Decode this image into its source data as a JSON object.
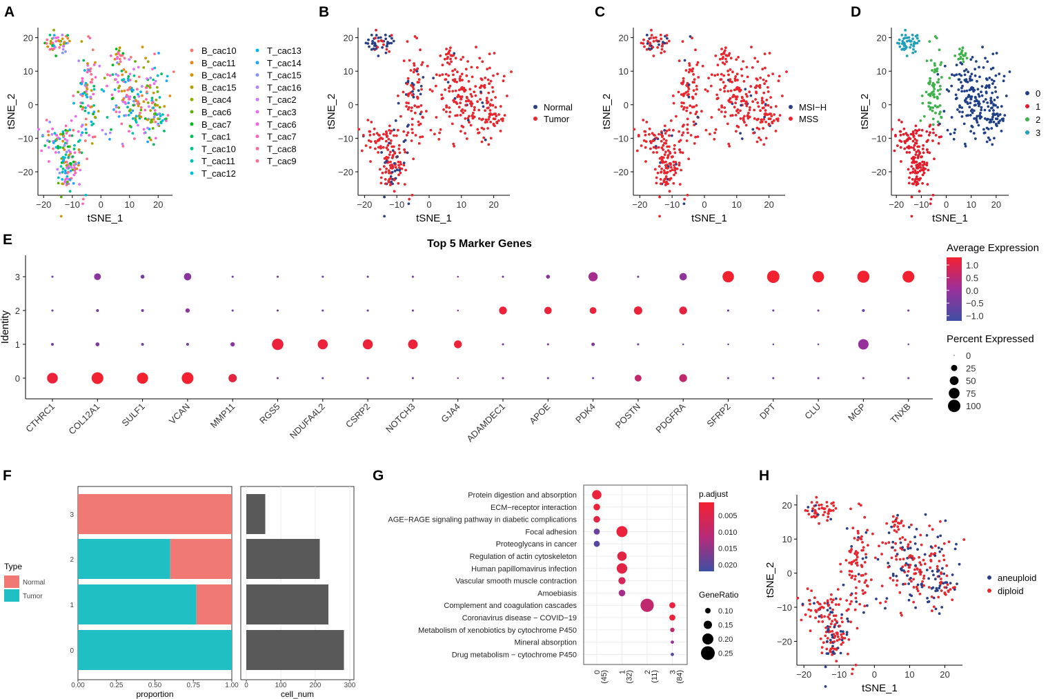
{
  "colors": {
    "normal_dot": "#2b3f86",
    "tumor_dot": "#e8262e",
    "cluster": [
      "#1f3f86",
      "#e21c2a",
      "#3db14a",
      "#1fa0b8"
    ],
    "grad_low": "#3f4fa3",
    "grad_mid": "#9b2f9b",
    "grad_high": "#f22130",
    "bar_normal": "#f07a73",
    "bar_tumor": "#1fbfc3",
    "bar_grey": "#595959"
  },
  "panels": {
    "A": {
      "label": "A",
      "xlabel": "tSNE_1",
      "ylabel": "tSNE_2",
      "legend": [
        "B_cac10",
        "B_cac11",
        "B_cac14",
        "B_cac15",
        "B_cac4",
        "B_cac6",
        "B_cac7",
        "T_cac1",
        "T_cac10",
        "T_cac11",
        "T_cac12",
        "T_cac13",
        "T_cac14",
        "T_cac15",
        "T_cac16",
        "T_cac2",
        "T_cac3",
        "T_cac6",
        "T_cac7",
        "T_cac8",
        "T_cac9"
      ],
      "legend_colors": [
        "#f4766e",
        "#e7861a",
        "#cf9400",
        "#b39f00",
        "#8fac00",
        "#5bb300",
        "#00b81f",
        "#00bc59",
        "#00c08b",
        "#00c0b3",
        "#00bcd8",
        "#00b4ef",
        "#1ea4ff",
        "#8494ff",
        "#b385ff",
        "#d376ff",
        "#e76bf3",
        "#f763e0",
        "#ff62bc",
        "#ff6a98",
        "#ff6c91"
      ]
    },
    "B": {
      "label": "B",
      "xlabel": "tSNE_1",
      "ylabel": "tSNE_2",
      "legend": [
        "Normal",
        "Tumor"
      ]
    },
    "C": {
      "label": "C",
      "xlabel": "tSNE_1",
      "ylabel": "tSNE_2",
      "legend": [
        "MSI−H",
        "MSS"
      ]
    },
    "D": {
      "label": "D",
      "xlabel": "tSNE_1",
      "ylabel": "tSNE_2",
      "legend": [
        "0",
        "1",
        "2",
        "3"
      ]
    },
    "E": {
      "label": "E"
    },
    "F": {
      "label": "F"
    },
    "G": {
      "label": "G"
    },
    "H": {
      "label": "H",
      "xlabel": "tSNE_1",
      "ylabel": "tSNE_2",
      "legend": [
        "aneuploid",
        "diploid"
      ]
    }
  },
  "chart_data": [
    {
      "id": "A",
      "type": "scatter",
      "title": "",
      "xlabel": "tSNE_1",
      "ylabel": "tSNE_2",
      "xlim": [
        -22,
        25
      ],
      "ylim": [
        -27,
        23
      ],
      "xticks": [
        -20,
        -10,
        0,
        10,
        20
      ],
      "yticks": [
        -20,
        -10,
        0,
        10,
        20
      ],
      "coloring": "sample",
      "series_names": [
        "B_cac10",
        "B_cac11",
        "B_cac14",
        "B_cac15",
        "B_cac4",
        "B_cac6",
        "B_cac7",
        "T_cac1",
        "T_cac10",
        "T_cac11",
        "T_cac12",
        "T_cac13",
        "T_cac14",
        "T_cac15",
        "T_cac16",
        "T_cac2",
        "T_cac3",
        "T_cac6",
        "T_cac7",
        "T_cac8",
        "T_cac9"
      ]
    },
    {
      "id": "B",
      "type": "scatter",
      "xlabel": "tSNE_1",
      "ylabel": "tSNE_2",
      "xlim": [
        -22,
        25
      ],
      "ylim": [
        -27,
        23
      ],
      "xticks": [
        -20,
        -10,
        0,
        10,
        20
      ],
      "yticks": [
        -20,
        -10,
        0,
        10,
        20
      ],
      "coloring": "type",
      "series_names": [
        "Normal",
        "Tumor"
      ]
    },
    {
      "id": "C",
      "type": "scatter",
      "xlabel": "tSNE_1",
      "ylabel": "tSNE_2",
      "xlim": [
        -22,
        25
      ],
      "ylim": [
        -27,
        23
      ],
      "xticks": [
        -20,
        -10,
        0,
        10,
        20
      ],
      "yticks": [
        -20,
        -10,
        0,
        10,
        20
      ],
      "coloring": "msi",
      "series_names": [
        "MSI−H",
        "MSS"
      ]
    },
    {
      "id": "D",
      "type": "scatter",
      "xlabel": "tSNE_1",
      "ylabel": "tSNE_2",
      "xlim": [
        -22,
        25
      ],
      "ylim": [
        -27,
        23
      ],
      "xticks": [
        -20,
        -10,
        0,
        10,
        20
      ],
      "yticks": [
        -20,
        -10,
        0,
        10,
        20
      ],
      "coloring": "cluster",
      "series_names": [
        "0",
        "1",
        "2",
        "3"
      ]
    },
    {
      "id": "E",
      "type": "dot",
      "title": "Top 5 Marker Genes",
      "ylabel": "Identity",
      "identities": [
        "0",
        "1",
        "2",
        "3"
      ],
      "genes": [
        "CTHRC1",
        "COL12A1",
        "SULF1",
        "VCAN",
        "MMP11",
        "RGS5",
        "NDUFA4L2",
        "CSRP2",
        "NOTCH3",
        "GJA4",
        "ADAMDEC1",
        "APOE",
        "PDK4",
        "POSTN",
        "PDGFRA",
        "SFRP2",
        "DPT",
        "CLU",
        "MGP",
        "TNXB"
      ],
      "pct": [
        [
          75,
          90,
          80,
          90,
          45,
          3,
          3,
          3,
          3,
          2,
          3,
          3,
          3,
          30,
          40,
          3,
          3,
          3,
          3,
          3
        ],
        [
          5,
          10,
          5,
          5,
          12,
          85,
          65,
          65,
          60,
          40,
          3,
          3,
          8,
          3,
          2,
          2,
          2,
          2,
          70,
          2
        ],
        [
          3,
          5,
          5,
          12,
          3,
          3,
          3,
          3,
          3,
          2,
          40,
          35,
          30,
          45,
          40,
          3,
          3,
          3,
          5,
          3
        ],
        [
          3,
          30,
          10,
          35,
          3,
          3,
          3,
          3,
          3,
          2,
          3,
          10,
          55,
          3,
          35,
          85,
          100,
          85,
          95,
          90
        ]
      ],
      "avg": [
        [
          1.2,
          1.3,
          1.3,
          1.3,
          1.1,
          -0.5,
          -0.5,
          -0.5,
          -0.5,
          -0.5,
          -0.3,
          -0.5,
          -0.5,
          0.6,
          0.6,
          -0.5,
          -0.5,
          -0.5,
          -0.3,
          -0.5
        ],
        [
          -0.5,
          -0.3,
          -0.5,
          -0.5,
          -0.2,
          1.2,
          1.2,
          1.2,
          1.2,
          1.2,
          -0.5,
          -0.5,
          -0.3,
          -0.6,
          -0.6,
          -0.6,
          -0.6,
          -0.6,
          0.0,
          -0.6
        ],
        [
          -0.6,
          -0.5,
          -0.4,
          -0.1,
          -0.6,
          -0.6,
          -0.6,
          -0.6,
          -0.6,
          -0.6,
          1.2,
          1.2,
          1.2,
          1.2,
          1.1,
          -0.5,
          -0.5,
          -0.5,
          -0.5,
          -0.5
        ],
        [
          -0.5,
          -0.2,
          -0.5,
          -0.2,
          -0.6,
          -0.6,
          -0.6,
          -0.6,
          -0.6,
          -0.6,
          -0.6,
          -0.2,
          0.2,
          -0.6,
          -0.1,
          1.3,
          1.3,
          1.3,
          1.3,
          1.3
        ]
      ],
      "color_legend": {
        "title": "Average Expression",
        "ticks": [
          "1.0",
          "0.5",
          "0.0",
          "−0.5",
          "−1.0"
        ],
        "range": [
          -1.2,
          1.3
        ]
      },
      "size_legend": {
        "title": "Percent Expressed",
        "ticks": [
          "0",
          "25",
          "50",
          "75",
          "100"
        ]
      }
    },
    {
      "id": "F_prop",
      "type": "bar",
      "orientation": "horizontal",
      "stacked": true,
      "categories": [
        "3",
        "2",
        "1",
        "0"
      ],
      "series": [
        {
          "name": "Tumor",
          "values": [
            0.0,
            0.6,
            0.77,
            1.0
          ]
        },
        {
          "name": "Normal",
          "values": [
            1.0,
            0.4,
            0.23,
            0.0
          ]
        }
      ],
      "xlabel": "proportion",
      "xlim": [
        0,
        1
      ],
      "xticks": [
        "0.00",
        "0.25",
        "0.50",
        "0.75",
        "1.00"
      ],
      "legend_title": "Type",
      "legend": [
        "Normal",
        "Tumor"
      ]
    },
    {
      "id": "F_count",
      "type": "bar",
      "orientation": "horizontal",
      "categories": [
        "3",
        "2",
        "1",
        "0"
      ],
      "values": [
        55,
        213,
        238,
        283
      ],
      "xlabel": "cell_num",
      "xlim": [
        0,
        300
      ],
      "xticks": [
        "0",
        "100",
        "200",
        "300"
      ]
    },
    {
      "id": "G",
      "type": "dot",
      "terms": [
        "Protein digestion and absorption",
        "ECM−receptor interaction",
        "AGE−RAGE signaling pathway in diabetic complications",
        "Focal adhesion",
        "Proteoglycans in cancer",
        "Regulation of actin cytoskeleton",
        "Human papillomavirus infection",
        "Vascular smooth muscle contraction",
        "Amoebiasis",
        "Complement and coagulation cascades",
        "Coronavirus disease − COVID−19",
        "Metabolism of xenobiotics by cytochrome P450",
        "Mineral absorption",
        "Drug metabolism − cytochrome P450"
      ],
      "clusters": [
        "0",
        "1",
        "2",
        "3"
      ],
      "cluster_counts": [
        "(45)",
        "(32)",
        "(11)",
        "(84)"
      ],
      "points": [
        {
          "term": 0,
          "cluster": 0,
          "ratio": 0.17,
          "padj": 0.002
        },
        {
          "term": 1,
          "cluster": 0,
          "ratio": 0.12,
          "padj": 0.002
        },
        {
          "term": 2,
          "cluster": 0,
          "ratio": 0.12,
          "padj": 0.003
        },
        {
          "term": 3,
          "cluster": 0,
          "ratio": 0.11,
          "padj": 0.017
        },
        {
          "term": 4,
          "cluster": 0,
          "ratio": 0.11,
          "padj": 0.019
        },
        {
          "term": 3,
          "cluster": 1,
          "ratio": 0.2,
          "padj": 0.002
        },
        {
          "term": 5,
          "cluster": 1,
          "ratio": 0.17,
          "padj": 0.003
        },
        {
          "term": 6,
          "cluster": 1,
          "ratio": 0.19,
          "padj": 0.003
        },
        {
          "term": 7,
          "cluster": 1,
          "ratio": 0.13,
          "padj": 0.005
        },
        {
          "term": 8,
          "cluster": 1,
          "ratio": 0.12,
          "padj": 0.01
        },
        {
          "term": 9,
          "cluster": 2,
          "ratio": 0.24,
          "padj": 0.007
        },
        {
          "term": 9,
          "cluster": 3,
          "ratio": 0.11,
          "padj": 0.002
        },
        {
          "term": 10,
          "cluster": 3,
          "ratio": 0.11,
          "padj": 0.002
        },
        {
          "term": 11,
          "cluster": 3,
          "ratio": 0.08,
          "padj": 0.007
        },
        {
          "term": 12,
          "cluster": 3,
          "ratio": 0.06,
          "padj": 0.012
        },
        {
          "term": 13,
          "cluster": 3,
          "ratio": 0.06,
          "padj": 0.02
        }
      ],
      "color_legend": {
        "title": "p.adjust",
        "ticks": [
          "0.005",
          "0.010",
          "0.015",
          "0.020"
        ],
        "range": [
          0.001,
          0.022
        ]
      },
      "size_legend": {
        "title": "GeneRatio",
        "ticks": [
          "0.10",
          "0.15",
          "0.20",
          "0.25"
        ]
      }
    },
    {
      "id": "H",
      "type": "scatter",
      "xlabel": "tSNE_1",
      "ylabel": "tSNE_2",
      "xlim": [
        -22,
        25
      ],
      "ylim": [
        -27,
        23
      ],
      "xticks": [
        -20,
        -10,
        0,
        10,
        20
      ],
      "yticks": [
        -20,
        -10,
        0,
        10,
        20
      ],
      "coloring": "ploidy",
      "series_names": [
        "aneuploid",
        "diploid"
      ]
    }
  ],
  "embedding_regions": [
    {
      "name": "top-left",
      "cx": -15,
      "cy": 18.5,
      "sx": 2.3,
      "sy": 1.5,
      "n": 45,
      "cluster": 3
    },
    {
      "name": "lower-left-arm",
      "cx": -16,
      "cy": -10,
      "sx": 2.5,
      "sy": 2.5,
      "n": 40,
      "cluster": 1
    },
    {
      "name": "lower-left",
      "cx": -11.5,
      "cy": -18,
      "sx": 2.3,
      "sy": 4.5,
      "n": 110,
      "cluster": 1
    },
    {
      "name": "mid-column",
      "cx": -5,
      "cy": 2,
      "sx": 2.0,
      "sy": 7.5,
      "n": 90,
      "cluster": 2
    },
    {
      "name": "top-small",
      "cx": 6,
      "cy": 15,
      "sx": 1.2,
      "sy": 1.2,
      "n": 18,
      "cluster": 2
    },
    {
      "name": "right-mass",
      "cx": 11,
      "cy": 2,
      "sx": 5.5,
      "sy": 6.5,
      "n": 190,
      "cluster": 0
    },
    {
      "name": "right-tail",
      "cx": 19.5,
      "cy": -4,
      "sx": 2.3,
      "sy": 2.5,
      "n": 35,
      "cluster": 0
    }
  ]
}
